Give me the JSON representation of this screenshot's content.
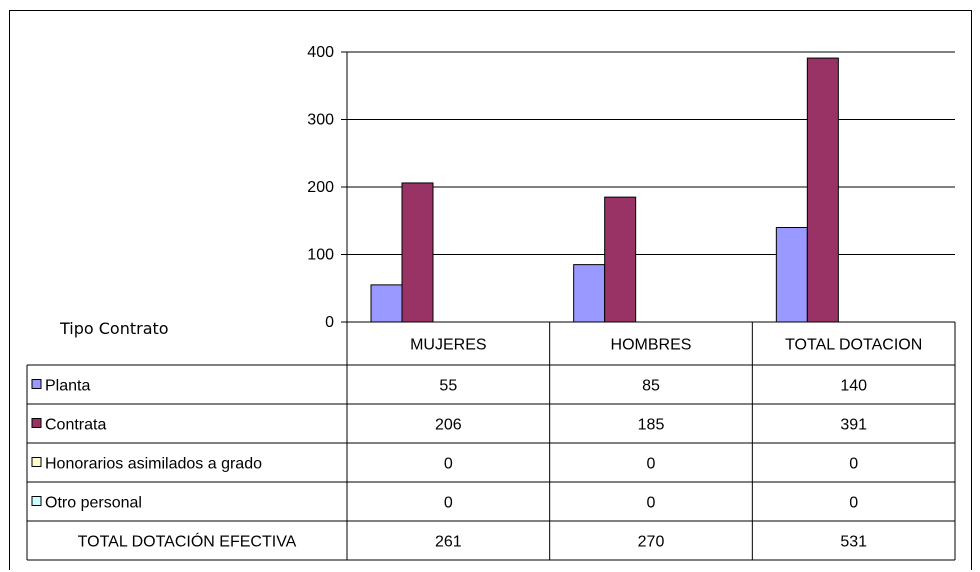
{
  "chart_data": {
    "type": "bar",
    "row_header_label": "Tipo Contrato",
    "categories": [
      "MUJERES",
      "HOMBRES",
      "TOTAL DOTACION"
    ],
    "ylim": [
      0,
      400
    ],
    "yticks": [
      0,
      100,
      200,
      300,
      400
    ],
    "grid": true,
    "series": [
      {
        "name": "Planta",
        "values": [
          55,
          85,
          140
        ],
        "color": "#9999ff"
      },
      {
        "name": "Contrata",
        "values": [
          206,
          185,
          391
        ],
        "color": "#993366"
      },
      {
        "name": "Honorarios asimilados a grado",
        "values": [
          0,
          0,
          0
        ],
        "color": "#ffffcc"
      },
      {
        "name": "Otro personal",
        "values": [
          0,
          0,
          0
        ],
        "color": "#ccffff"
      }
    ],
    "total_row": {
      "label": "TOTAL DOTACIÓN EFECTIVA",
      "values": [
        261,
        270,
        531
      ]
    }
  }
}
